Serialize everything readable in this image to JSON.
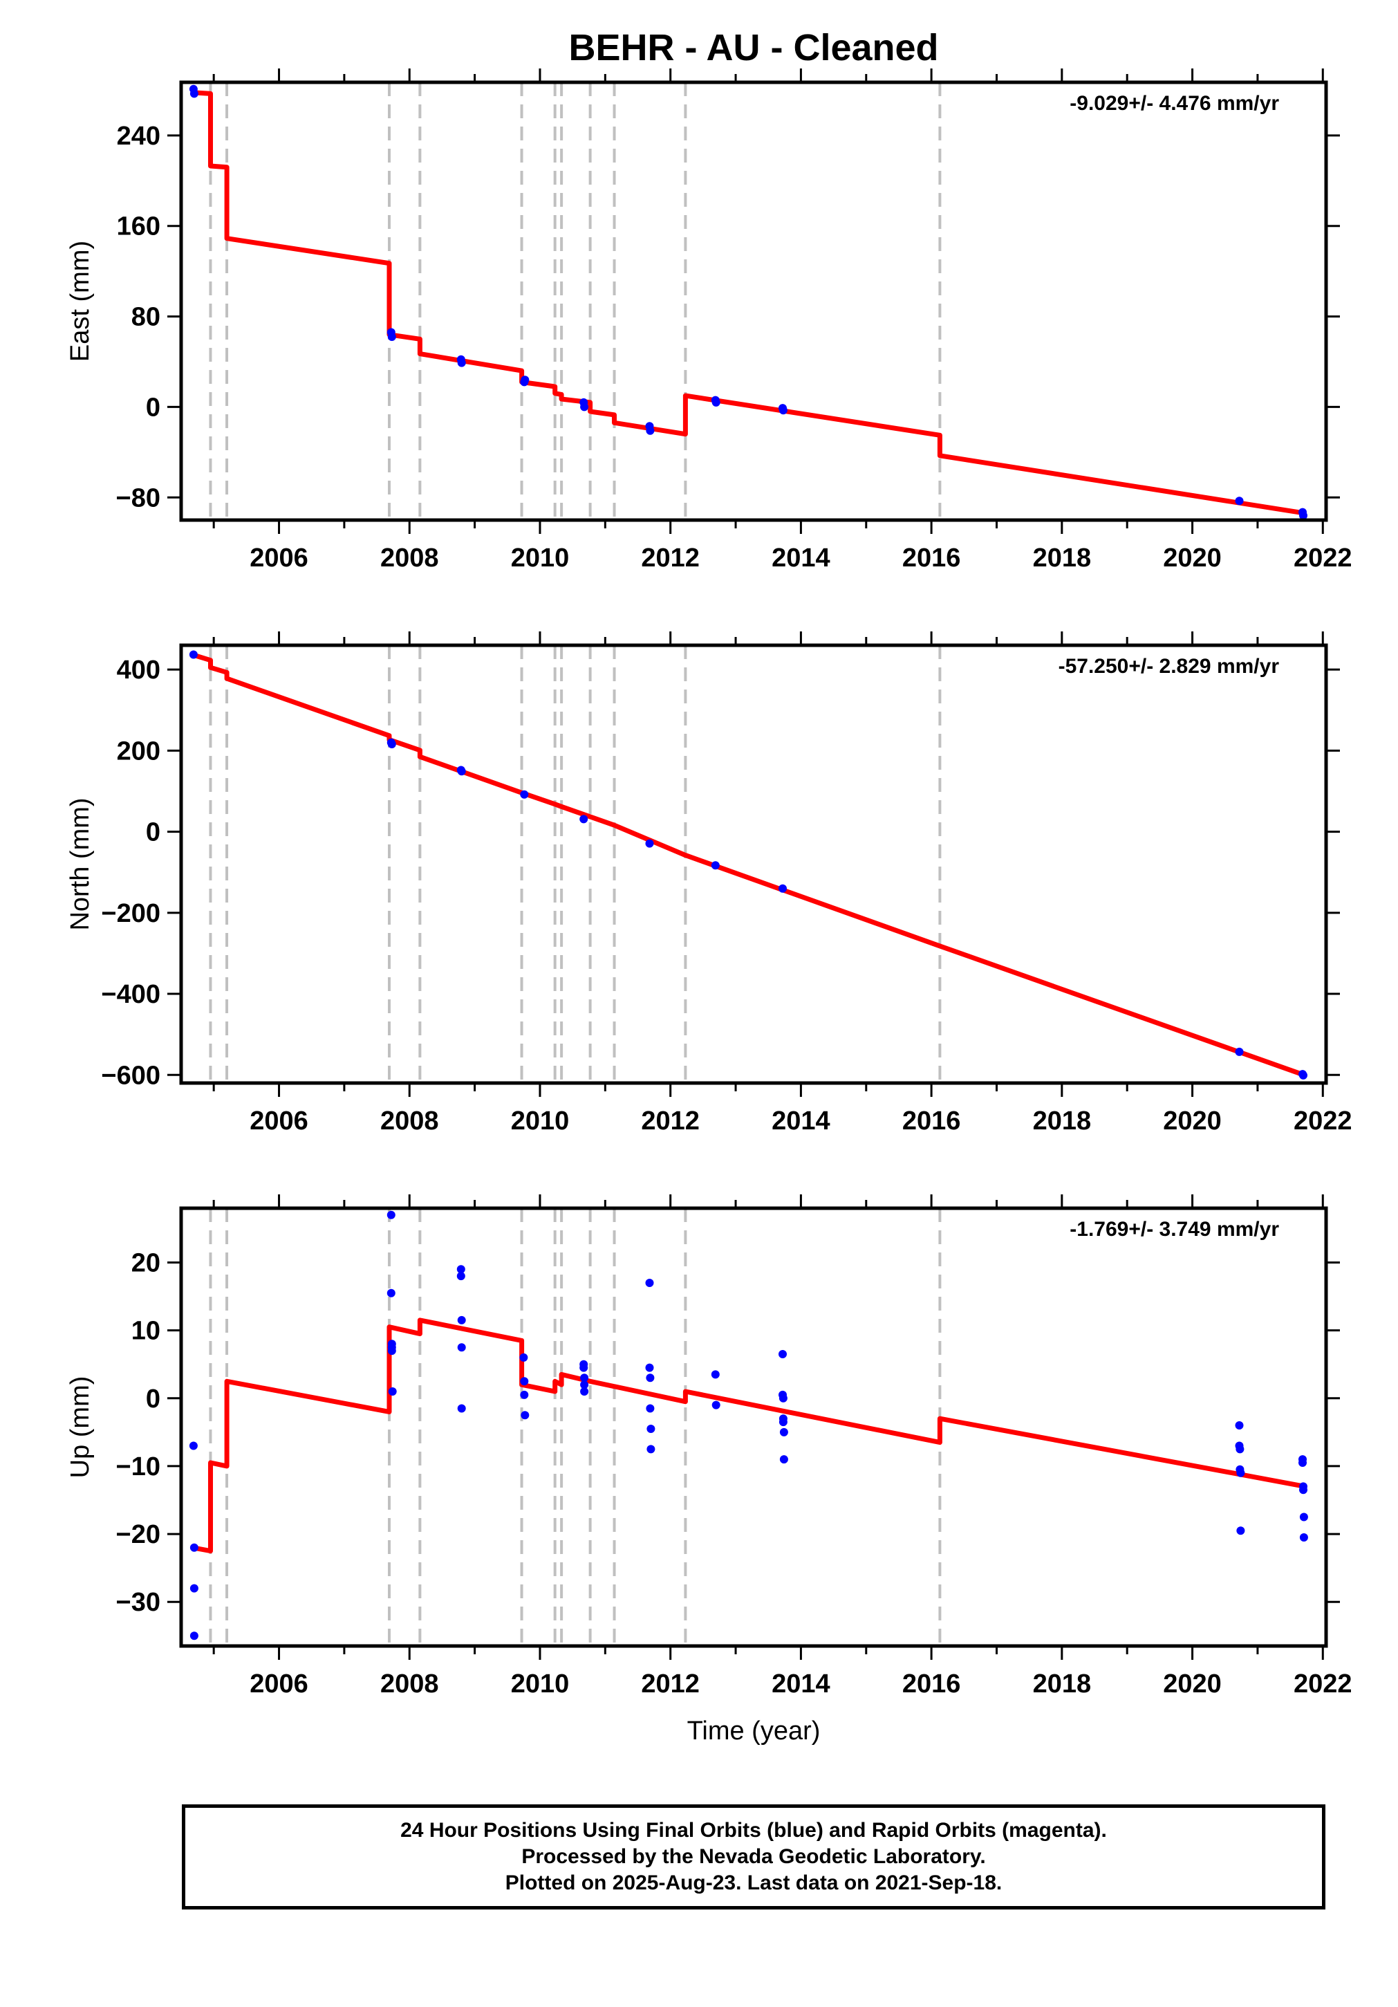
{
  "page": {
    "title": "BEHR  - AU - Cleaned",
    "footer": [
      "24 Hour Positions Using Final Orbits (blue) and Rapid Orbits (magenta).",
      "Processed by the Nevada Geodetic Laboratory.",
      "Plotted on 2025-Aug-23. Last data on 2021-Sep-18."
    ]
  },
  "colors": {
    "data": "#0000ff",
    "model": "#ff0000",
    "steps": "#c0c0c0",
    "axes": "#000000"
  },
  "chart_data": [
    {
      "type": "scatter",
      "name": "east",
      "ylabel": "East (mm)",
      "xlabel": "",
      "rate": "-9.029+/- 4.476 mm/yr",
      "xlim": [
        2004.5,
        2022.05
      ],
      "ylim": [
        -100,
        287
      ],
      "xticks": [
        2006,
        2008,
        2010,
        2012,
        2014,
        2016,
        2018,
        2020,
        2022
      ],
      "yticks": [
        -80,
        0,
        80,
        160,
        240
      ],
      "points": [
        [
          2004.69,
          281
        ],
        [
          2004.7,
          277
        ],
        [
          2007.72,
          66
        ],
        [
          2007.73,
          62
        ],
        [
          2008.79,
          42
        ],
        [
          2008.8,
          39
        ],
        [
          2009.76,
          22
        ],
        [
          2009.77,
          24
        ],
        [
          2010.67,
          4
        ],
        [
          2010.68,
          0
        ],
        [
          2011.68,
          -17
        ],
        [
          2011.69,
          -21
        ],
        [
          2012.69,
          6
        ],
        [
          2012.7,
          4
        ],
        [
          2013.72,
          -1
        ],
        [
          2013.73,
          -3
        ],
        [
          2020.72,
          -83
        ],
        [
          2021.69,
          -93
        ],
        [
          2021.7,
          -96
        ]
      ],
      "model": [
        [
          2004.67,
          278
        ],
        [
          2004.95,
          277
        ],
        [
          2004.95,
          213
        ],
        [
          2005.2,
          212
        ],
        [
          2005.2,
          149
        ],
        [
          2007.69,
          127
        ],
        [
          2007.69,
          64
        ],
        [
          2008.16,
          60
        ],
        [
          2008.16,
          47
        ],
        [
          2009.72,
          32
        ],
        [
          2009.72,
          22
        ],
        [
          2010.23,
          18
        ],
        [
          2010.23,
          12
        ],
        [
          2010.33,
          11
        ],
        [
          2010.33,
          7
        ],
        [
          2010.77,
          4
        ],
        [
          2010.77,
          -4
        ],
        [
          2011.14,
          -7
        ],
        [
          2011.14,
          -14
        ],
        [
          2012.23,
          -24
        ],
        [
          2012.23,
          10
        ],
        [
          2016.13,
          -25
        ],
        [
          2016.13,
          -43
        ],
        [
          2021.73,
          -94
        ]
      ],
      "steps": [
        2004.95,
        2005.2,
        2007.69,
        2008.16,
        2009.72,
        2010.23,
        2010.33,
        2010.77,
        2011.14,
        2012.23,
        2016.13
      ]
    },
    {
      "type": "scatter",
      "name": "north",
      "ylabel": "North (mm)",
      "xlabel": "",
      "rate": "-57.250+/- 2.829 mm/yr",
      "xlim": [
        2004.5,
        2022.05
      ],
      "ylim": [
        -620,
        460
      ],
      "xticks": [
        2006,
        2008,
        2010,
        2012,
        2014,
        2016,
        2018,
        2020,
        2022
      ],
      "yticks": [
        -600,
        -400,
        -200,
        0,
        200,
        400
      ],
      "points": [
        [
          2004.69,
          437
        ],
        [
          2007.72,
          220
        ],
        [
          2007.73,
          216
        ],
        [
          2008.79,
          152
        ],
        [
          2008.8,
          149
        ],
        [
          2009.76,
          92
        ],
        [
          2010.67,
          31
        ],
        [
          2011.68,
          -29
        ],
        [
          2012.69,
          -83
        ],
        [
          2013.72,
          -140
        ],
        [
          2020.72,
          -543
        ],
        [
          2021.69,
          -598
        ],
        [
          2021.7,
          -601
        ]
      ],
      "model": [
        [
          2004.67,
          437
        ],
        [
          2004.95,
          423
        ],
        [
          2004.95,
          405
        ],
        [
          2005.2,
          393
        ],
        [
          2005.2,
          378
        ],
        [
          2007.69,
          237
        ],
        [
          2007.69,
          227
        ],
        [
          2008.16,
          201
        ],
        [
          2008.16,
          185
        ],
        [
          2009.72,
          96
        ],
        [
          2010.23,
          68
        ],
        [
          2010.33,
          62
        ],
        [
          2010.77,
          37
        ],
        [
          2011.14,
          16
        ],
        [
          2012.23,
          -58
        ],
        [
          2016.13,
          -282
        ],
        [
          2021.73,
          -601
        ]
      ],
      "steps": [
        2004.95,
        2005.2,
        2007.69,
        2008.16,
        2009.72,
        2010.23,
        2010.33,
        2010.77,
        2011.14,
        2012.23,
        2016.13
      ]
    },
    {
      "type": "scatter",
      "name": "up",
      "ylabel": "Up (mm)",
      "xlabel": "Time (year)",
      "rate": "-1.769+/- 3.749 mm/yr",
      "xlim": [
        2004.5,
        2022.05
      ],
      "ylim": [
        -36.5,
        28
      ],
      "xticks": [
        2006,
        2008,
        2010,
        2012,
        2014,
        2016,
        2018,
        2020,
        2022
      ],
      "yticks": [
        -30,
        -20,
        -10,
        0,
        10,
        20
      ],
      "points": [
        [
          2004.69,
          -7
        ],
        [
          2004.7,
          -22
        ],
        [
          2004.7,
          -28
        ],
        [
          2004.7,
          -35
        ],
        [
          2007.72,
          27
        ],
        [
          2007.72,
          15.5
        ],
        [
          2007.73,
          8
        ],
        [
          2007.73,
          7.5
        ],
        [
          2007.73,
          7
        ],
        [
          2007.74,
          1
        ],
        [
          2008.79,
          19
        ],
        [
          2008.79,
          18
        ],
        [
          2008.8,
          11.5
        ],
        [
          2008.8,
          7.5
        ],
        [
          2008.8,
          -1.5
        ],
        [
          2009.75,
          6
        ],
        [
          2009.76,
          2.5
        ],
        [
          2009.76,
          0.5
        ],
        [
          2009.77,
          -2.5
        ],
        [
          2010.67,
          5
        ],
        [
          2010.67,
          4.5
        ],
        [
          2010.68,
          3
        ],
        [
          2010.68,
          2
        ],
        [
          2010.68,
          1
        ],
        [
          2011.68,
          17
        ],
        [
          2011.68,
          4.5
        ],
        [
          2011.69,
          3
        ],
        [
          2011.69,
          -1.5
        ],
        [
          2011.7,
          -4.5
        ],
        [
          2011.7,
          -7.5
        ],
        [
          2012.69,
          3.5
        ],
        [
          2012.7,
          -1
        ],
        [
          2013.72,
          6.5
        ],
        [
          2013.72,
          0.5
        ],
        [
          2013.73,
          0
        ],
        [
          2013.73,
          -3
        ],
        [
          2013.73,
          -3.5
        ],
        [
          2013.74,
          -5
        ],
        [
          2013.74,
          -9
        ],
        [
          2020.72,
          -4
        ],
        [
          2020.72,
          -7
        ],
        [
          2020.73,
          -7.5
        ],
        [
          2020.73,
          -10.5
        ],
        [
          2020.74,
          -11
        ],
        [
          2020.74,
          -19.5
        ],
        [
          2021.69,
          -9
        ],
        [
          2021.69,
          -9.5
        ],
        [
          2021.7,
          -13
        ],
        [
          2021.7,
          -13.5
        ],
        [
          2021.71,
          -17.5
        ],
        [
          2021.71,
          -20.5
        ]
      ],
      "model": [
        [
          2004.67,
          -22
        ],
        [
          2004.95,
          -22.5
        ],
        [
          2004.95,
          -9.5
        ],
        [
          2005.2,
          -10
        ],
        [
          2005.2,
          2.5
        ],
        [
          2007.69,
          -2
        ],
        [
          2007.69,
          10.5
        ],
        [
          2008.16,
          9.5
        ],
        [
          2008.16,
          11.5
        ],
        [
          2009.72,
          8.5
        ],
        [
          2009.72,
          2
        ],
        [
          2010.23,
          1
        ],
        [
          2010.23,
          2.5
        ],
        [
          2010.33,
          2
        ],
        [
          2010.33,
          3.5
        ],
        [
          2010.77,
          2.5
        ],
        [
          2012.23,
          -0.5
        ],
        [
          2012.23,
          1
        ],
        [
          2016.13,
          -6.5
        ],
        [
          2016.13,
          -3
        ],
        [
          2021.73,
          -13
        ]
      ],
      "steps": [
        2004.95,
        2005.2,
        2007.69,
        2008.16,
        2009.72,
        2010.23,
        2010.33,
        2010.77,
        2011.14,
        2012.23,
        2016.13
      ]
    }
  ]
}
